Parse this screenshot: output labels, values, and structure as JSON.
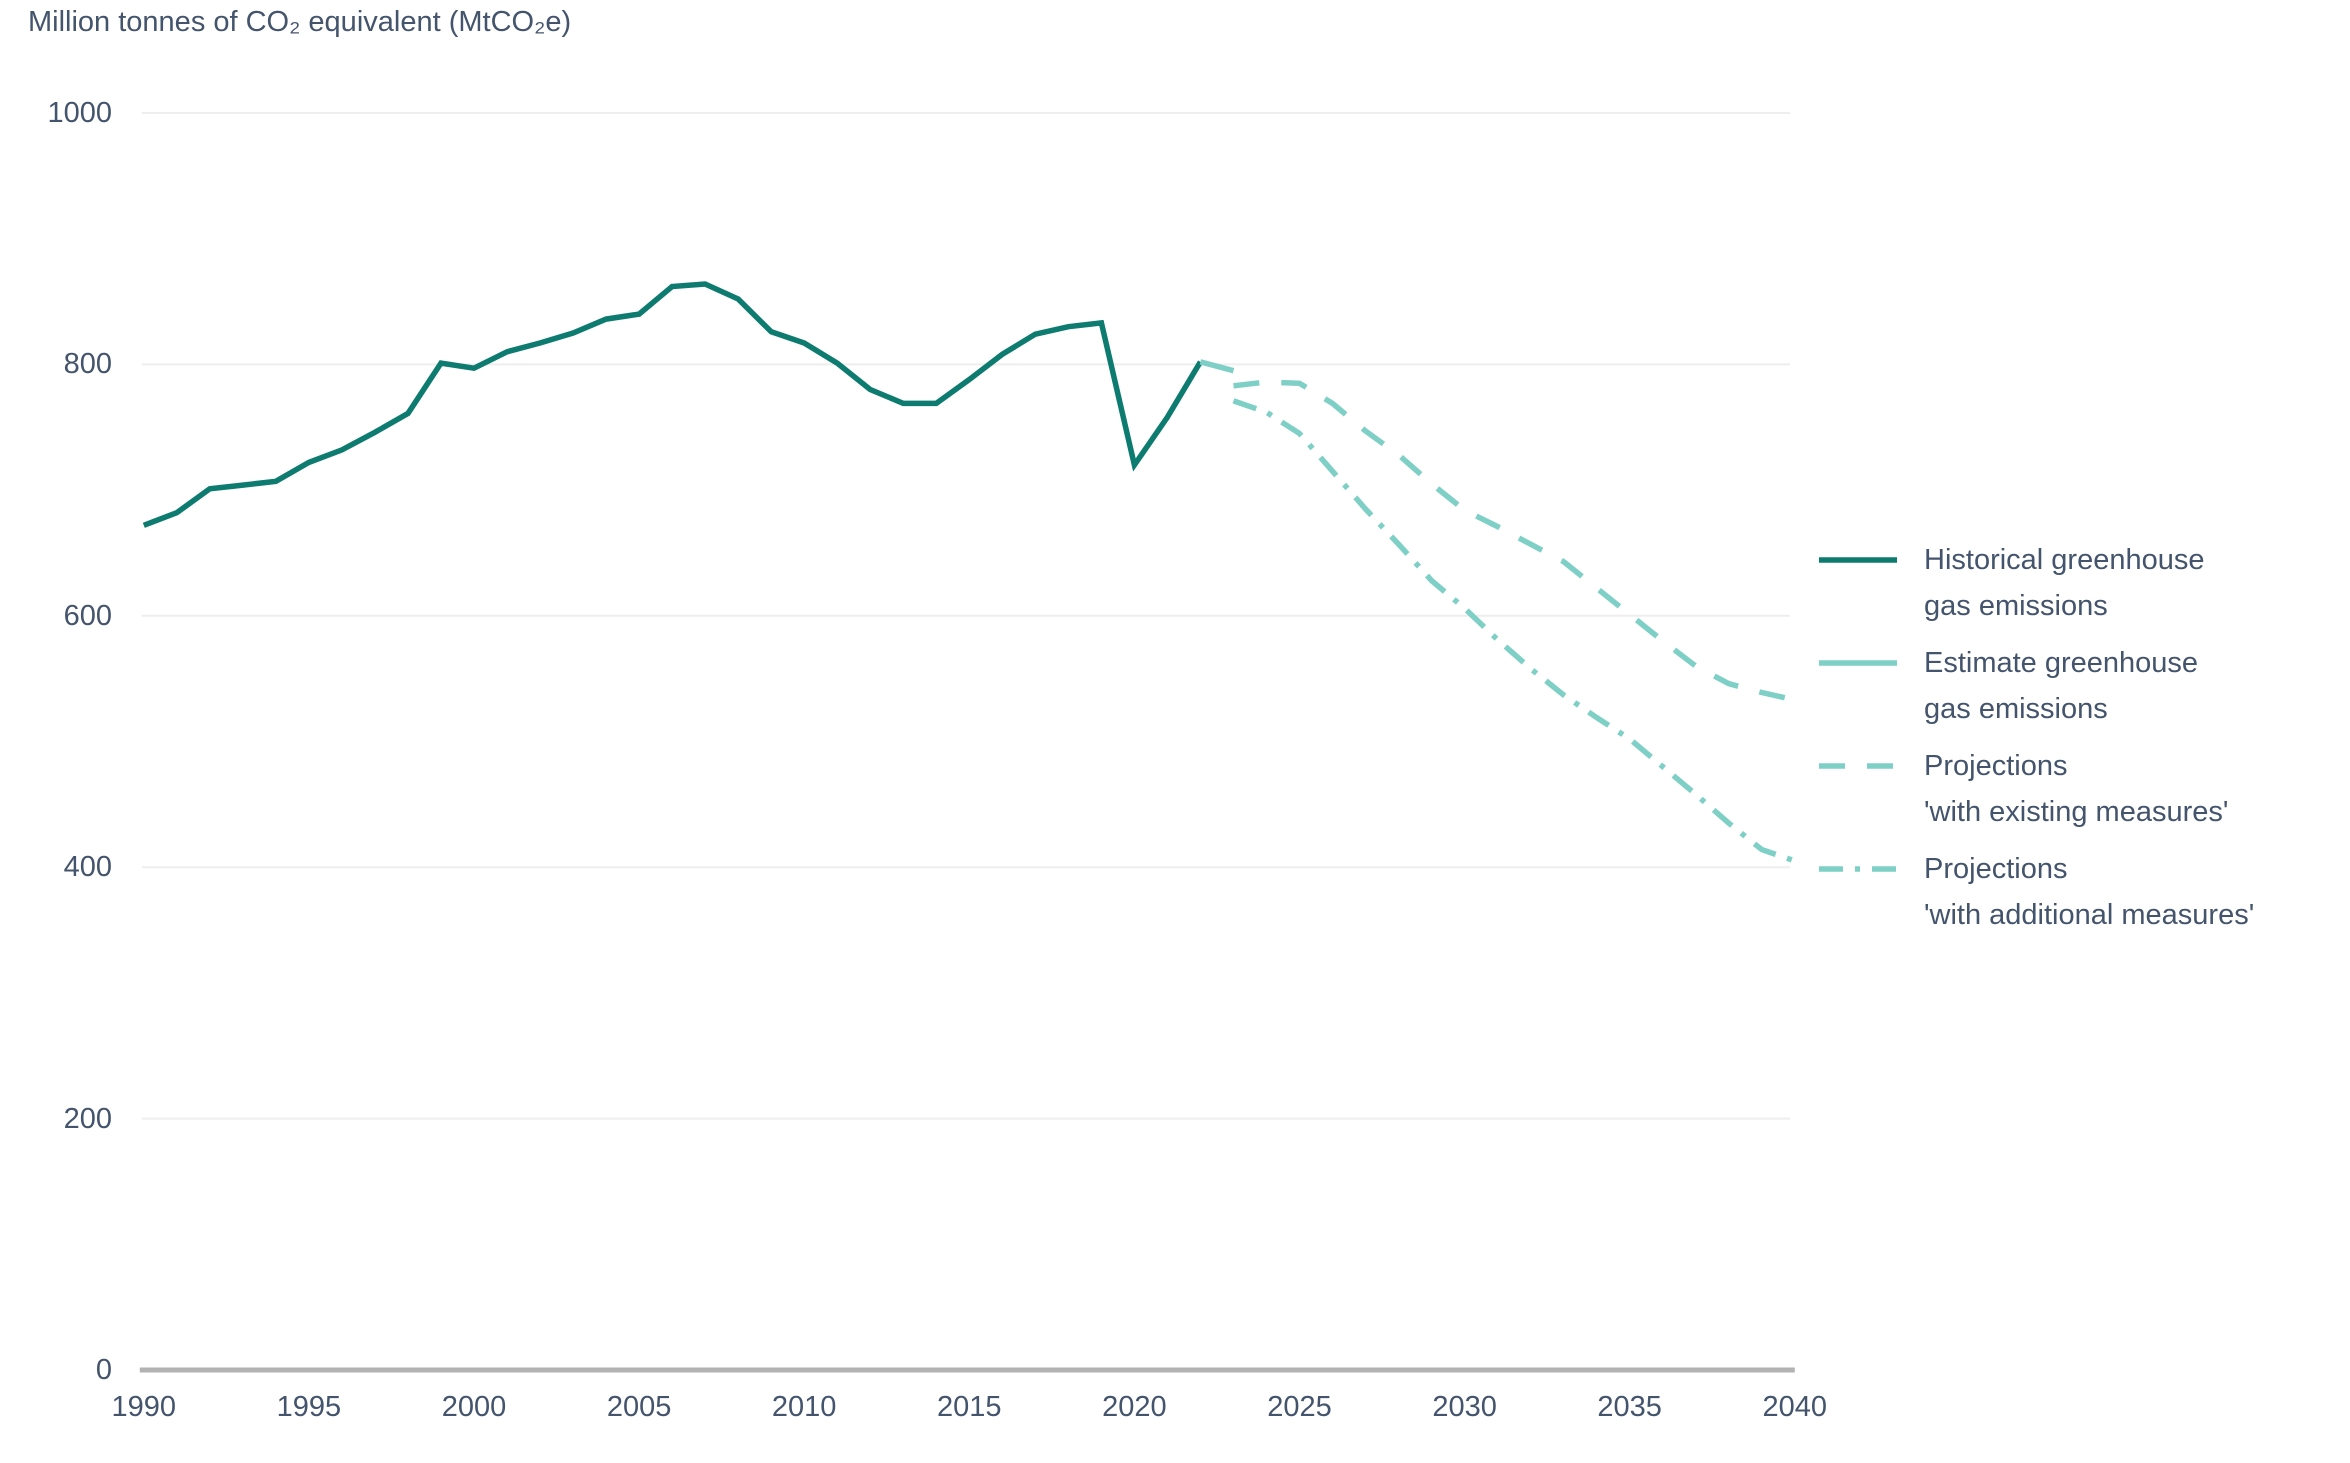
{
  "title": "Million tonnes of CO₂ equivalent (MtCO₂e)",
  "colors": {
    "historical": "#0d7b6f",
    "projection": "#7ecfc5",
    "text": "#44546c",
    "gridline": "#eeeeee",
    "axis": "#b2b2b2",
    "background": "#ffffff"
  },
  "legend": {
    "items": [
      {
        "id": "historical",
        "style": "solid",
        "color": "#0d7b6f",
        "label_line1": "Historical greenhouse",
        "label_line2": "gas emissions"
      },
      {
        "id": "estimate",
        "style": "solid",
        "color": "#7ecfc5",
        "label_line1": "Estimate greenhouse",
        "label_line2": "gas emissions"
      },
      {
        "id": "wem",
        "style": "dashed",
        "color": "#7ecfc5",
        "label_line1": "Projections",
        "label_line2": "'with existing measures'"
      },
      {
        "id": "wam",
        "style": "dash-dot",
        "color": "#7ecfc5",
        "label_line1": "Projections",
        "label_line2": "'with additional measures'"
      }
    ]
  },
  "chart_data": {
    "type": "line",
    "title": "Million tonnes of CO₂ equivalent (MtCO₂e)",
    "xlabel": "",
    "ylabel": "Million tonnes of CO₂ equivalent (MtCO₂e)",
    "xlim": [
      1990,
      2040
    ],
    "ylim": [
      0,
      1000
    ],
    "x_ticks": [
      "1990",
      "1995",
      "2000",
      "2005",
      "2010",
      "2015",
      "2020",
      "2025",
      "2030",
      "2035",
      "2040"
    ],
    "y_ticks": [
      "0",
      "200",
      "400",
      "600",
      "800",
      "1000"
    ],
    "grid": "horizontal-only",
    "legend_position": "right",
    "series": [
      {
        "name": "Historical greenhouse gas emissions",
        "style": "solid",
        "color": "#0d7b6f",
        "x": [
          1990,
          1991,
          1992,
          1993,
          1994,
          1995,
          1996,
          1997,
          1998,
          1999,
          2000,
          2001,
          2002,
          2003,
          2004,
          2005,
          2006,
          2007,
          2008,
          2009,
          2010,
          2011,
          2012,
          2013,
          2014,
          2015,
          2016,
          2017,
          2018,
          2019,
          2020,
          2021,
          2022
        ],
        "values": [
          672,
          682,
          701,
          704,
          707,
          722,
          732,
          746,
          761,
          801,
          797,
          810,
          817,
          825,
          836,
          840,
          862,
          864,
          852,
          826,
          817,
          801,
          780,
          769,
          769,
          788,
          808,
          824,
          830,
          833,
          720,
          758,
          802
        ]
      },
      {
        "name": "Estimate greenhouse gas emissions",
        "style": "solid",
        "color": "#7ecfc5",
        "x": [
          2022,
          2023
        ],
        "values": [
          802,
          795
        ]
      },
      {
        "name": "Projections 'with existing measures'",
        "style": "dashed",
        "color": "#7ecfc5",
        "x": [
          2023,
          2024,
          2025,
          2026,
          2027,
          2028,
          2029,
          2030,
          2031,
          2032,
          2033,
          2034,
          2035,
          2036,
          2037,
          2038,
          2039,
          2040
        ],
        "values": [
          783,
          786,
          785,
          769,
          747,
          728,
          705,
          684,
          671,
          657,
          643,
          622,
          601,
          580,
          560,
          546,
          539,
          533
        ]
      },
      {
        "name": "Projections 'with additional measures'",
        "style": "dash-dot",
        "color": "#7ecfc5",
        "x": [
          2023,
          2024,
          2025,
          2026,
          2027,
          2028,
          2029,
          2030,
          2031,
          2032,
          2033,
          2034,
          2035,
          2036,
          2037,
          2038,
          2039,
          2040
        ],
        "values": [
          771,
          762,
          745,
          715,
          685,
          657,
          628,
          606,
          581,
          558,
          537,
          519,
          502,
          480,
          458,
          435,
          414,
          405
        ]
      }
    ]
  }
}
